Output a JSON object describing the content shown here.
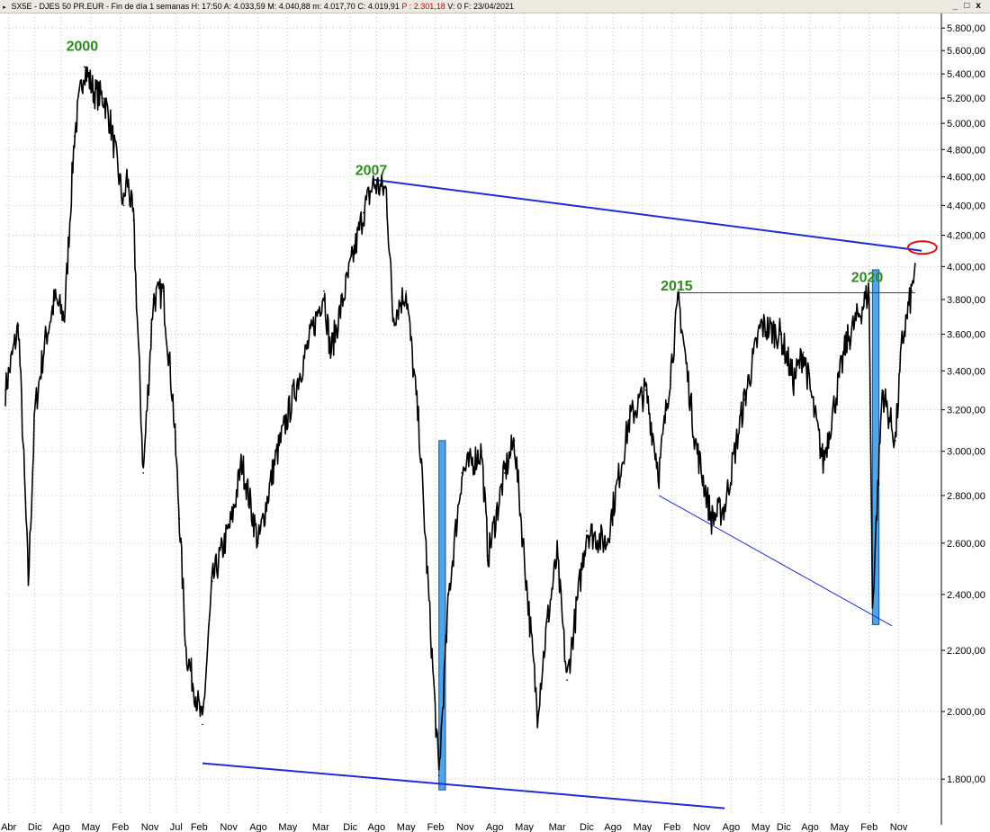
{
  "header": {
    "menu_glyph": "▸",
    "symbol": "SX5E - DJES 50 PR.EUR - Fin de día 1 semanas",
    "time": "H: 17:50",
    "open": "A: 4.033,59",
    "high": "M: 4.040,88",
    "low": "m: 4.017,70",
    "close": "C: 4.019,91",
    "point": "P : 2.301,18",
    "volume": "V: 0",
    "date": "F: 23/04/2021",
    "window_controls": [
      "_",
      "□",
      "x"
    ]
  },
  "chart_data": {
    "type": "line",
    "title": "SX5E - DJES 50 PR.EUR - Fin de día 1 semanas",
    "scale": "log",
    "ylim": [
      1700,
      5900
    ],
    "y_ticks": [
      "5.800,00",
      "5.600,00",
      "5.400,00",
      "5.200,00",
      "5.000,00",
      "4.800,00",
      "4.600,00",
      "4.400,00",
      "4.200,00",
      "4.000,00",
      "3.800,00",
      "3.600,00",
      "3.400,00",
      "3.200,00",
      "3.000,00",
      "2.800,00",
      "2.600,00",
      "2.400,00",
      "2.200,00",
      "2.000,00",
      "1.800,00"
    ],
    "y_tick_values": [
      5800,
      5600,
      5400,
      5200,
      5000,
      4800,
      4600,
      4400,
      4200,
      4000,
      3800,
      3600,
      3400,
      3200,
      3000,
      2800,
      2600,
      2400,
      2200,
      2000,
      1800
    ],
    "x_ticks": [
      "Abr",
      "Dic",
      "Ago",
      "May",
      "Feb",
      "Nov",
      "Jul",
      "Feb",
      "Nov",
      "Ago",
      "May",
      "Mar",
      "Dic",
      "Ago",
      "May",
      "Feb",
      "Nov",
      "Ago",
      "May",
      "Mar",
      "Dic",
      "Ago",
      "May",
      "Feb",
      "Nov",
      "Ago",
      "May",
      "Dic",
      "Ago",
      "May",
      "Feb",
      "Nov"
    ],
    "x_tick_dates": [
      "1998-04",
      "1998-12",
      "1999-08",
      "2000-05",
      "2001-02",
      "2001-11",
      "2002-07",
      "2003-02",
      "2003-11",
      "2004-08",
      "2005-05",
      "2006-03",
      "2006-12",
      "2007-08",
      "2008-05",
      "2009-02",
      "2009-11",
      "2010-08",
      "2011-05",
      "2012-03",
      "2012-12",
      "2013-08",
      "2014-05",
      "2015-02",
      "2015-11",
      "2016-08",
      "2017-05",
      "2017-12",
      "2018-08",
      "2019-05",
      "2020-02",
      "2020-11"
    ],
    "grid": true,
    "series": [
      {
        "values": [
          [
            "1998-03",
            3300
          ],
          [
            "1998-07",
            3650
          ],
          [
            "1998-10",
            2450
          ],
          [
            "1998-12",
            3200
          ],
          [
            "1999-03",
            3550
          ],
          [
            "1999-06",
            3800
          ],
          [
            "1999-09",
            3700
          ],
          [
            "1999-12",
            4900
          ],
          [
            "2000-03",
            5460
          ],
          [
            "2000-06",
            5250
          ],
          [
            "2000-09",
            5200
          ],
          [
            "2000-11",
            5000
          ],
          [
            "2001-03",
            4400
          ],
          [
            "2001-04",
            4600
          ],
          [
            "2001-06",
            4300
          ],
          [
            "2001-09",
            2900
          ],
          [
            "2001-12",
            3800
          ],
          [
            "2002-03",
            3850
          ],
          [
            "2002-06",
            3250
          ],
          [
            "2002-08",
            2700
          ],
          [
            "2002-10",
            2200
          ],
          [
            "2003-03",
            1960
          ],
          [
            "2003-06",
            2450
          ],
          [
            "2003-12",
            2700
          ],
          [
            "2004-03",
            2950
          ],
          [
            "2004-08",
            2600
          ],
          [
            "2005-01",
            2950
          ],
          [
            "2005-08",
            3350
          ],
          [
            "2006-04",
            3850
          ],
          [
            "2006-06",
            3500
          ],
          [
            "2007-04",
            4350
          ],
          [
            "2007-07",
            4550
          ],
          [
            "2007-11",
            4500
          ],
          [
            "2008-01",
            3700
          ],
          [
            "2008-05",
            3850
          ],
          [
            "2008-09",
            3100
          ],
          [
            "2009-03",
            1810
          ],
          [
            "2009-06",
            2400
          ],
          [
            "2009-10",
            2900
          ],
          [
            "2010-04",
            3000
          ],
          [
            "2010-06",
            2550
          ],
          [
            "2010-11",
            2900
          ],
          [
            "2011-02",
            3050
          ],
          [
            "2011-09",
            2000
          ],
          [
            "2011-12",
            2300
          ],
          [
            "2012-03",
            2550
          ],
          [
            "2012-06",
            2100
          ],
          [
            "2012-12",
            2650
          ],
          [
            "2013-06",
            2600
          ],
          [
            "2014-01",
            3150
          ],
          [
            "2014-06",
            3300
          ],
          [
            "2014-10",
            2900
          ],
          [
            "2015-04",
            3800
          ],
          [
            "2015-09",
            3050
          ],
          [
            "2016-02",
            2700
          ],
          [
            "2016-06",
            2750
          ],
          [
            "2016-12",
            3250
          ],
          [
            "2017-05",
            3650
          ],
          [
            "2017-11",
            3600
          ],
          [
            "2018-03",
            3350
          ],
          [
            "2018-06",
            3500
          ],
          [
            "2018-12",
            2950
          ],
          [
            "2019-07",
            3550
          ],
          [
            "2020-02",
            3850
          ],
          [
            "2020-03",
            2350
          ],
          [
            "2020-06",
            3300
          ],
          [
            "2020-10",
            3050
          ],
          [
            "2020-12",
            3550
          ],
          [
            "2021-03",
            3850
          ],
          [
            "2021-04",
            4020
          ]
        ]
      }
    ],
    "peak_labels": [
      {
        "text": "2000",
        "date": "2000-03"
      },
      {
        "text": "2007",
        "date": "2007-07"
      },
      {
        "text": "2015",
        "date": "2015-04"
      },
      {
        "text": "2020",
        "date": "2020-02"
      }
    ],
    "trendlines": [
      {
        "name": "upper resistance",
        "color": "#1f2bd8",
        "from": [
          "2007-07",
          4580
        ],
        "to": [
          "2021-06",
          4100
        ]
      },
      {
        "name": "lower support",
        "color": "#1f2bd8",
        "from": [
          "2003-03",
          1845
        ],
        "to": [
          "2016-06",
          1720
        ]
      },
      {
        "name": "2015 peak level",
        "color": "#1f2bd8",
        "from": [
          "2015-04",
          3840
        ],
        "to": [
          "2021-04",
          3840
        ]
      },
      {
        "name": "2015-2020 support",
        "color": "#1f2bd8",
        "from": [
          "2014-10",
          2800
        ],
        "to": [
          "2020-09",
          2285
        ]
      }
    ],
    "highlight_bars": [
      {
        "color": "#4da6ea",
        "from_date": "2009-03",
        "to_date": "2009-05",
        "low": 1770,
        "high": 3050
      },
      {
        "color": "#4da6ea",
        "from_date": "2020-03",
        "to_date": "2020-05",
        "low": 2290,
        "high": 3980
      }
    ],
    "annotation_ellipse": {
      "color": "#e01010",
      "date": "2021-04",
      "value": 4120
    }
  }
}
